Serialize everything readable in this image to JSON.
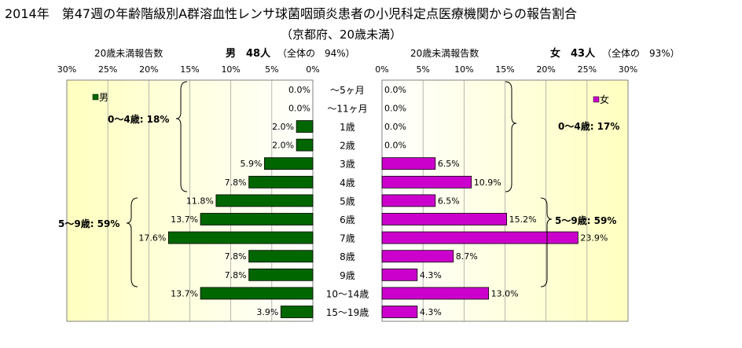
{
  "title": "2014年　第47週の年齢階級別A群溶血性レンサ球菌咽頭炎患者の小児科定点医療機関からの報告割合",
  "subtitle": "（京都府、20歳未満）",
  "chart_data": {
    "type": "bar",
    "categories": [
      "～5ヶ月",
      "～11ヶ月",
      "1歳",
      "2歳",
      "3歳",
      "4歳",
      "5歳",
      "6歳",
      "7歳",
      "8歳",
      "9歳",
      "10～14歳",
      "15～19歳"
    ],
    "xlim": [
      0,
      30
    ],
    "ticks": [
      "30%",
      "25%",
      "20%",
      "15%",
      "10%",
      "5%",
      "0%"
    ],
    "ticks_right": [
      "0%",
      "5%",
      "10%",
      "15%",
      "20%",
      "25%",
      "30%"
    ],
    "axis_caption_left": "20歳未満報告数",
    "axis_caption_right": "20歳未満報告数",
    "series": [
      {
        "name": "男",
        "header": "男　48人",
        "share": "（全体の　94%）",
        "color": "#006600",
        "values": [
          0.0,
          0.0,
          2.0,
          2.0,
          5.9,
          7.8,
          11.8,
          13.7,
          17.6,
          7.8,
          7.8,
          13.7,
          3.9
        ],
        "labels": [
          "0.0%",
          "0.0%",
          "2.0%",
          "2.0%",
          "5.9%",
          "7.8%",
          "11.8%",
          "13.7%",
          "17.6%",
          "7.8%",
          "7.8%",
          "13.7%",
          "3.9%"
        ],
        "group_labels": [
          "0～4歳: 18%",
          "5～9歳: 59%"
        ]
      },
      {
        "name": "女",
        "header": "女　43人",
        "share": "（全体の　93%）",
        "color": "#cc00cc",
        "values": [
          0.0,
          0.0,
          0.0,
          0.0,
          6.5,
          10.9,
          6.5,
          15.2,
          23.9,
          8.7,
          4.3,
          13.0,
          4.3
        ],
        "labels": [
          "0.0%",
          "0.0%",
          "0.0%",
          "0.0%",
          "6.5%",
          "10.9%",
          "6.5%",
          "15.2%",
          "23.9%",
          "8.7%",
          "4.3%",
          "13.0%",
          "4.3%"
        ],
        "group_labels": [
          "0～4歳: 17%",
          "5～9歳: 59%"
        ]
      }
    ]
  }
}
